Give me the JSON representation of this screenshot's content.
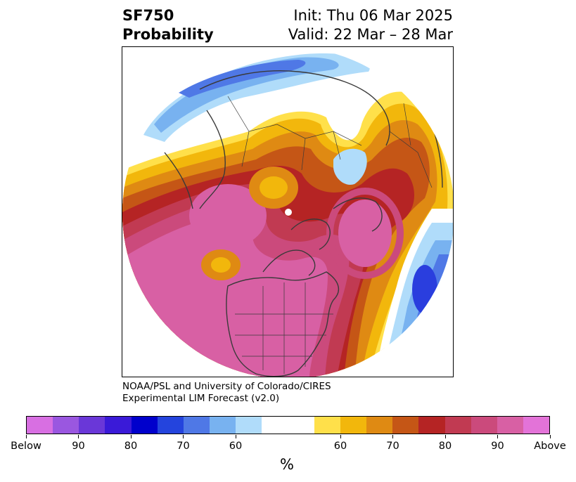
{
  "title": {
    "left_line1": "SF750",
    "left_line2": "Probability",
    "right_line1": "Init: Thu 06 Mar 2025",
    "right_line2": "Valid: 22 Mar – 28 Mar"
  },
  "credit": {
    "line1": "NOAA/PSL and University of Colorado/CIRES",
    "line2": "Experimental LIM Forecast (v2.0)"
  },
  "colorbar": {
    "colors": [
      "#d86fe2",
      "#9a57e0",
      "#6a37d8",
      "#3a1ad8",
      "#0000cc",
      "#2444dd",
      "#4f78e6",
      "#78b2f0",
      "#b0dcfa",
      "#ffffff",
      "#ffffff",
      "#ffe04a",
      "#f2b70c",
      "#df8a13",
      "#c55616",
      "#b52424",
      "#c13a52",
      "#cb4a7c",
      "#d860a4",
      "#e373d8"
    ],
    "tick_labels": [
      "Below",
      "90",
      "80",
      "70",
      "60",
      "60",
      "70",
      "80",
      "90",
      "Above"
    ],
    "unit": "%"
  },
  "map_colors": {
    "land_outline": "#3a3a3a",
    "deep_blue": "#2a3ede",
    "blue": "#4f78e6",
    "mid_blue": "#78b2f0",
    "light_blue": "#b0dcfa",
    "yellow": "#ffe04a",
    "gold": "#f2b70c",
    "orange": "#df8a13",
    "burnt_orange": "#c55616",
    "red": "#b52424",
    "crimson": "#c13a52",
    "rose": "#cb4a7c",
    "pink": "#d860a4"
  }
}
